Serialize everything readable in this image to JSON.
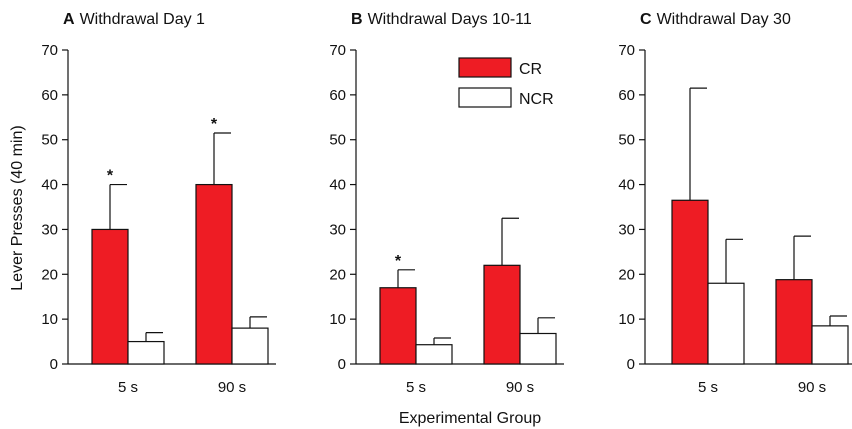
{
  "ylabel": "Lever Presses (40 min)",
  "xlabel": "Experimental Group",
  "colors": {
    "CR": "#ee1c24",
    "NCR": "#ffffff",
    "stroke": "#111111"
  },
  "legend": {
    "placement": "top-right of panel B",
    "items": [
      "CR",
      "NCR"
    ]
  },
  "chart_data": [
    {
      "type": "bar",
      "panel": "A",
      "title": "Withdrawal Day 1",
      "categories": [
        "5 s",
        "90 s"
      ],
      "ylim": [
        0,
        70
      ],
      "yticks": [
        0,
        10,
        20,
        30,
        40,
        50,
        60,
        70
      ],
      "series": [
        {
          "name": "CR",
          "values": [
            30,
            40
          ],
          "errors": [
            10,
            11.5
          ],
          "significant": [
            true,
            true
          ]
        },
        {
          "name": "NCR",
          "values": [
            5,
            8
          ],
          "errors": [
            2,
            2.5
          ],
          "significant": [
            false,
            false
          ]
        }
      ]
    },
    {
      "type": "bar",
      "panel": "B",
      "title": "Withdrawal Days 10-11",
      "categories": [
        "5 s",
        "90 s"
      ],
      "ylim": [
        0,
        70
      ],
      "yticks": [
        0,
        10,
        20,
        30,
        40,
        50,
        60,
        70
      ],
      "series": [
        {
          "name": "CR",
          "values": [
            17,
            22
          ],
          "errors": [
            4,
            10.5
          ],
          "significant": [
            true,
            false
          ]
        },
        {
          "name": "NCR",
          "values": [
            4.3,
            6.8
          ],
          "errors": [
            1.5,
            3.5
          ],
          "significant": [
            false,
            false
          ]
        }
      ]
    },
    {
      "type": "bar",
      "panel": "C",
      "title": "Withdrawal Day 30",
      "categories": [
        "5 s",
        "90 s"
      ],
      "ylim": [
        0,
        70
      ],
      "yticks": [
        0,
        10,
        20,
        30,
        40,
        50,
        60,
        70
      ],
      "series": [
        {
          "name": "CR",
          "values": [
            36.5,
            18.8
          ],
          "errors": [
            25,
            9.7
          ],
          "significant": [
            false,
            false
          ]
        },
        {
          "name": "NCR",
          "values": [
            18,
            8.5
          ],
          "errors": [
            9.8,
            2.2
          ],
          "significant": [
            false,
            false
          ]
        }
      ]
    }
  ]
}
